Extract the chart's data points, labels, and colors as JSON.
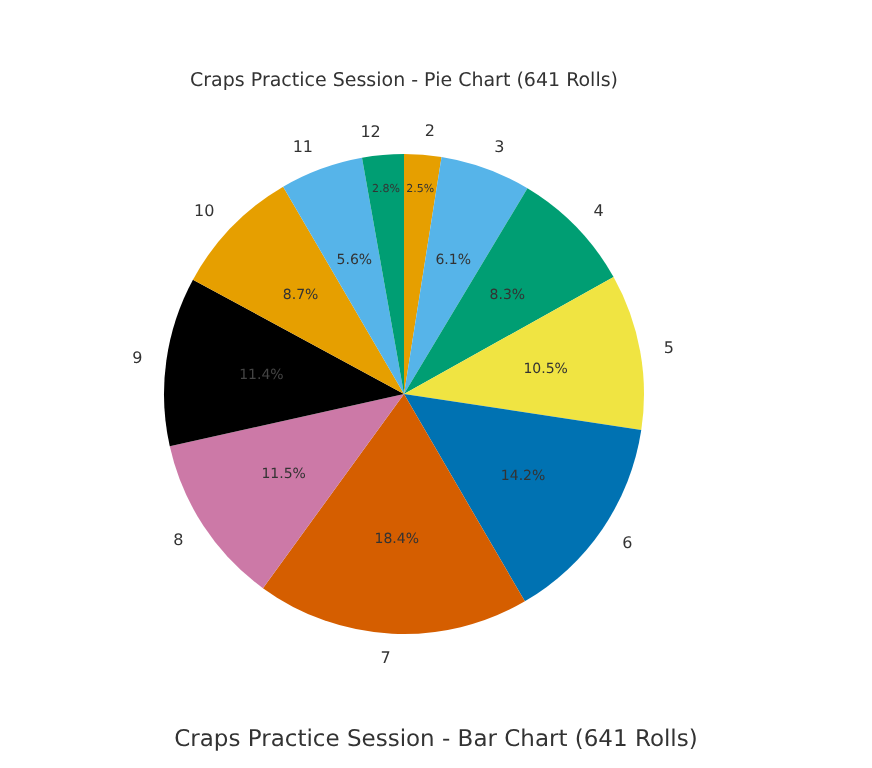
{
  "chart_data": [
    {
      "type": "pie",
      "title": "Craps Practice Session - Pie Chart (641 Rolls)",
      "categories": [
        "2",
        "3",
        "4",
        "5",
        "6",
        "7",
        "8",
        "9",
        "10",
        "11",
        "12"
      ],
      "values": [
        2.5,
        6.1,
        8.3,
        10.5,
        14.2,
        18.4,
        11.5,
        11.4,
        8.7,
        5.6,
        2.8
      ],
      "colors": [
        "#e69f00",
        "#56b4e9",
        "#009e73",
        "#f0e442",
        "#0072b2",
        "#d55e00",
        "#cc79a7",
        "#000000",
        "#e69f00",
        "#56b4e9",
        "#009e73"
      ],
      "value_labels": [
        "2.5%",
        "6.1%",
        "8.3%",
        "10.5%",
        "14.2%",
        "18.4%",
        "11.5%",
        "11.4%",
        "8.7%",
        "5.6%",
        "2.8%"
      ]
    },
    {
      "type": "other",
      "title": "Craps Practice Session - Bar Chart (641 Rolls)"
    }
  ]
}
